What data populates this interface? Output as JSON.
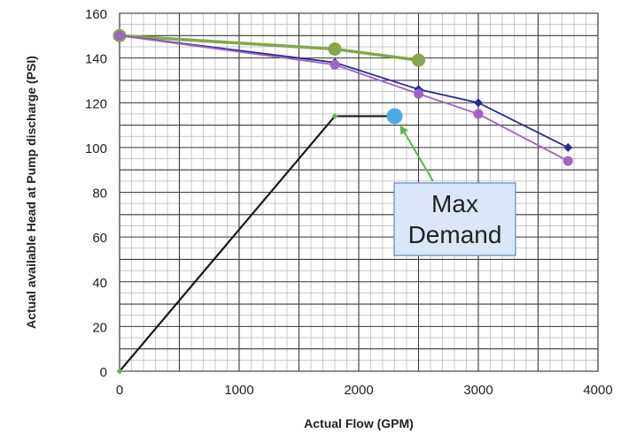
{
  "chart_data": {
    "type": "line",
    "xlabel": "Actual Flow (GPM)",
    "ylabel": "Actual available  Head at Pump discharge (PSI)",
    "xlim": [
      0,
      4000
    ],
    "ylim": [
      0,
      160
    ],
    "x_ticks": [
      0,
      1000,
      2000,
      3000,
      4000
    ],
    "y_ticks": [
      0,
      20,
      40,
      60,
      80,
      100,
      120,
      140,
      160
    ],
    "grid": true,
    "series": [
      {
        "color": "#86a74a",
        "marker": "circle",
        "points": [
          [
            0,
            150
          ],
          [
            1800,
            144
          ],
          [
            2500,
            139
          ]
        ]
      },
      {
        "color": "#2a2a9c",
        "marker": "diamond",
        "points": [
          [
            0,
            150
          ],
          [
            1800,
            138
          ],
          [
            2500,
            126
          ],
          [
            3000,
            120
          ],
          [
            3750,
            100
          ]
        ]
      },
      {
        "color": "#a065c2",
        "marker": "circle",
        "points": [
          [
            0,
            150
          ],
          [
            1800,
            137
          ],
          [
            2500,
            124
          ],
          [
            3000,
            115
          ],
          [
            3750,
            94
          ]
        ]
      },
      {
        "color": "#1a1a1a",
        "marker": "small-diamond",
        "points": [
          [
            0,
            0
          ],
          [
            1800,
            114
          ],
          [
            2280,
            114
          ]
        ]
      }
    ],
    "demand_point": {
      "x": 2300,
      "y": 114,
      "color": "#4ea8e8"
    },
    "annotation": {
      "lines": [
        "Max",
        "Demand"
      ],
      "target": [
        2300,
        114
      ],
      "arrow_color": "#55bb55"
    }
  }
}
